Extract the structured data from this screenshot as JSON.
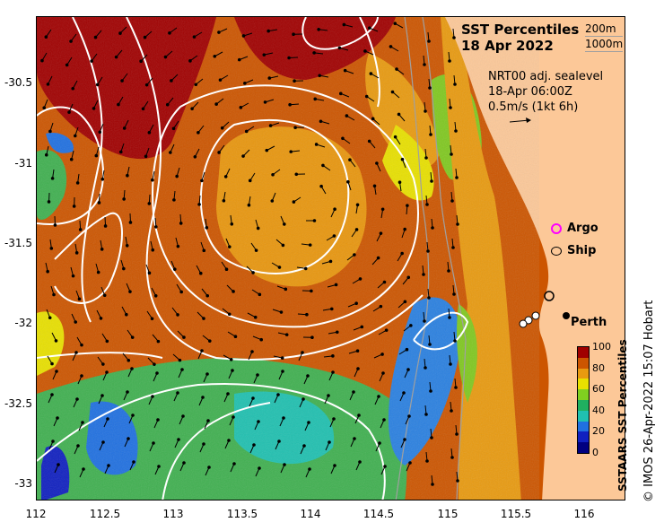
{
  "title": {
    "line1": "SST Percentiles",
    "line2": "18 Apr 2022"
  },
  "depth_legend": {
    "contour1": "200m",
    "contour2": "1000m"
  },
  "model": {
    "line1": "NRT00 adj. sealevel",
    "line2": "18-Apr 06:00Z",
    "line3": "0.5m/s (1kt 6h)"
  },
  "legend": {
    "argo": "Argo",
    "ship": "Ship",
    "argo_color": "#ff00ff",
    "ship_color": "#000000"
  },
  "place_label": "Perth",
  "colorbar": {
    "title": "SSTAARS SST Percentiles",
    "ticks": [
      "100",
      "80",
      "60",
      "40",
      "20",
      "0"
    ],
    "colors": [
      "#a00000",
      "#cc5500",
      "#e89a10",
      "#e8e000",
      "#80d020",
      "#20b060",
      "#20c0b0",
      "#2070e0",
      "#1020c0",
      "#000080"
    ]
  },
  "credit": "© IMOS 26-Apr-2022 15:07 Hobart",
  "axes": {
    "xticks": [
      "112",
      "112.5",
      "113",
      "113.5",
      "114",
      "114.5",
      "115",
      "115.5",
      "116"
    ],
    "yticks": [
      "-30.5",
      "-31",
      "-31.5",
      "-32",
      "-32.5",
      "-33"
    ]
  },
  "colors": {
    "land": "#fcc898",
    "contour": "#ffffff",
    "bathy": "#a0a0a0"
  }
}
